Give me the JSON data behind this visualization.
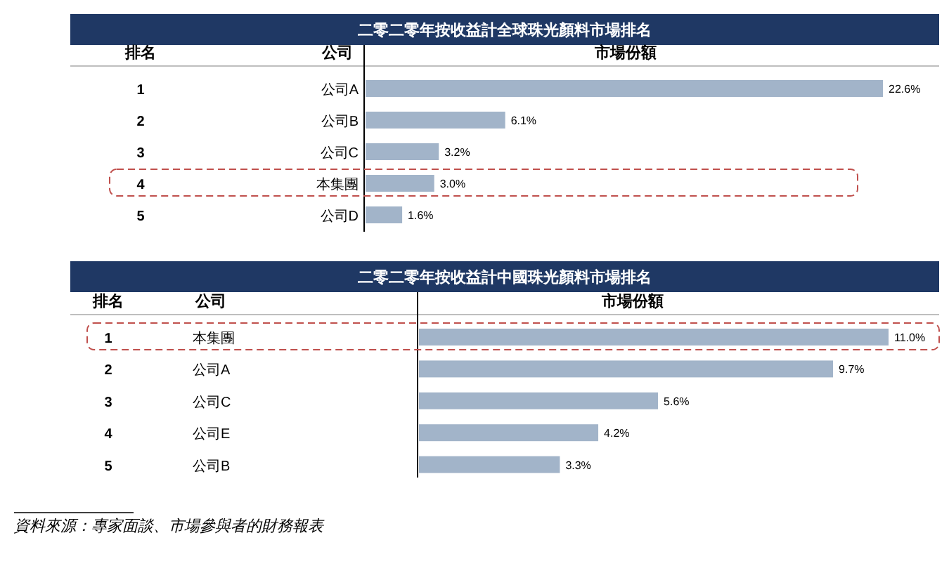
{
  "chart_data": [
    {
      "type": "bar",
      "orientation": "horizontal",
      "title": "二零二零年按收益計全球珠光顏料市場排名",
      "ylabel": "公司",
      "xlabel": "市場份額",
      "categories": [
        "公司A",
        "公司B",
        "公司C",
        "本集團",
        "公司D"
      ],
      "values": [
        22.6,
        6.1,
        3.2,
        3.0,
        1.6
      ],
      "value_labels": [
        "22.6%",
        "6.1%",
        "3.2%",
        "3.0%",
        "1.6%"
      ],
      "color": "#a2b4c9",
      "annotations": [
        "排名",
        "1",
        "2",
        "3",
        "4",
        "5"
      ]
    },
    {
      "type": "bar",
      "orientation": "horizontal",
      "title": "二零二零年按收益計中國珠光顏料市場排名",
      "ylabel": "公司",
      "xlabel": "市場份額",
      "categories": [
        "本集團",
        "公司A",
        "公司C",
        "公司E",
        "公司B"
      ],
      "values": [
        11.0,
        9.7,
        5.6,
        4.2,
        3.3
      ],
      "value_labels": [
        "11.0%",
        "9.7%",
        "5.6%",
        "4.2%",
        "3.3%"
      ],
      "color": "#a2b4c9",
      "annotations": [
        "排名",
        "1",
        "2",
        "3",
        "4",
        "5",
        "資料來源：專家面談、市場參與者的財務報表"
      ]
    }
  ]
}
